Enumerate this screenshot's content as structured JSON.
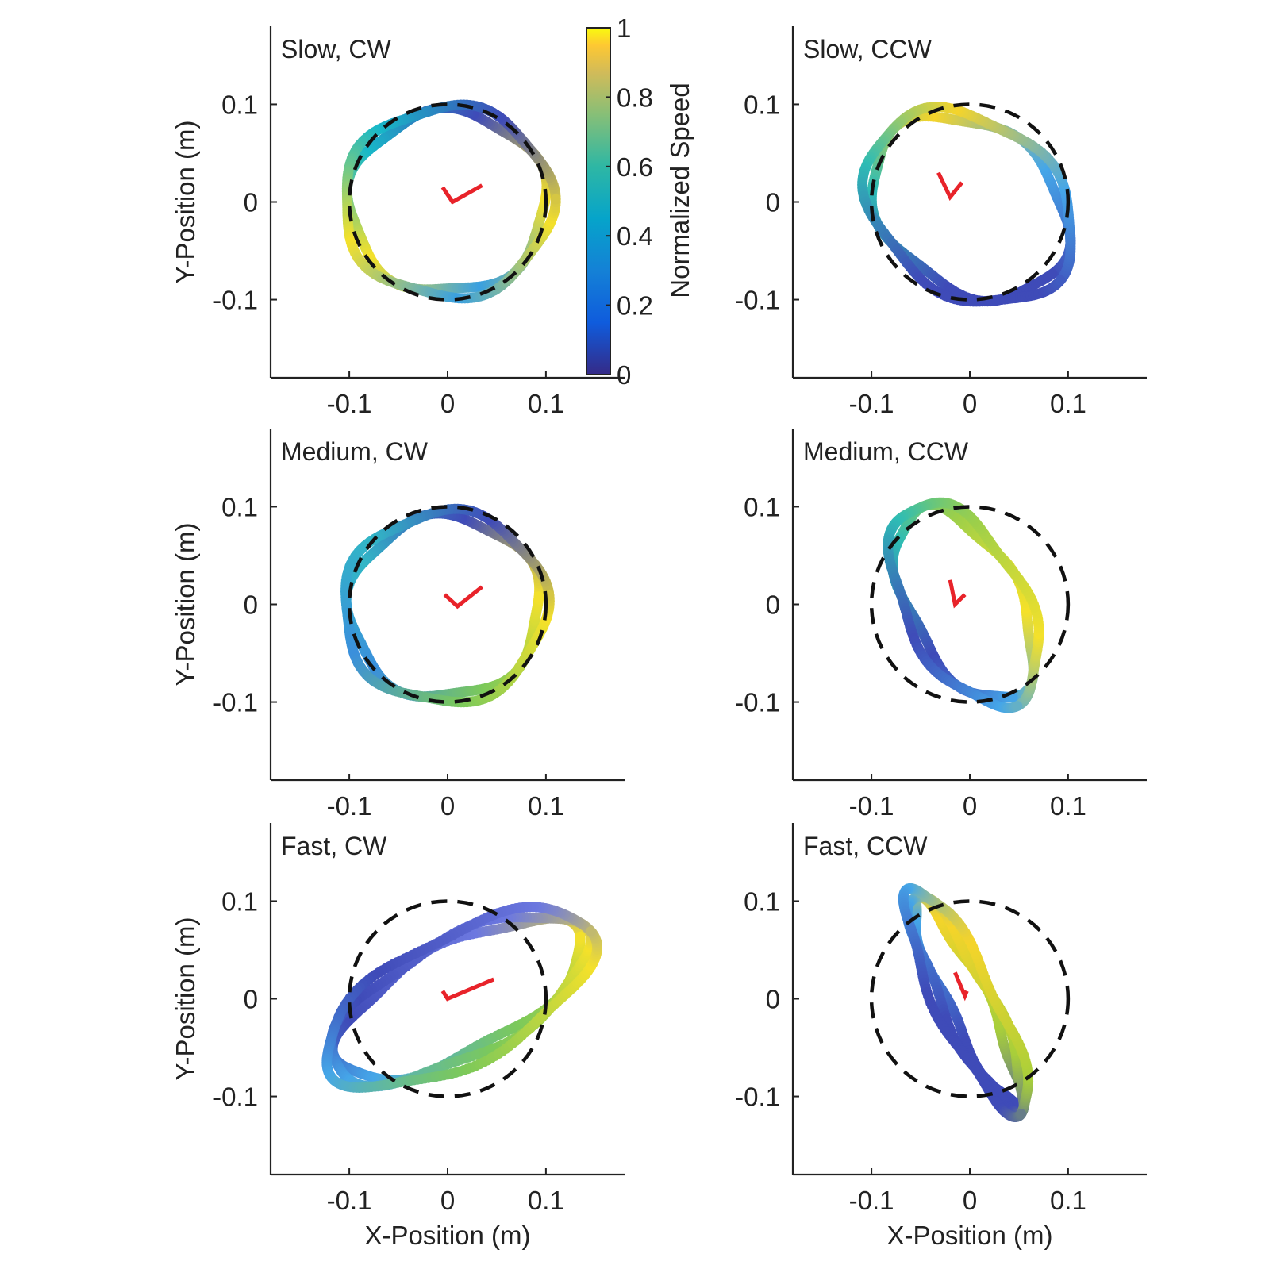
{
  "figure": {
    "xlabel": "X-Position (m)",
    "ylabel": "Y-Position (m)",
    "colorbar": {
      "label": "Normalized Speed",
      "ticks": [
        "0",
        "0.2",
        "0.4",
        "0.6",
        "0.8",
        "1"
      ],
      "colormap": "parula"
    },
    "x_ticks": [
      "-0.1",
      "0",
      "0.1"
    ],
    "y_ticks": [
      "0.1",
      "0",
      "-0.1"
    ]
  },
  "chart_data": [
    {
      "type": "scatter",
      "title": "Slow, CW",
      "xlim": [
        -0.18,
        0.18
      ],
      "ylim": [
        -0.18,
        0.18
      ],
      "target_circle": {
        "center": [
          0,
          0
        ],
        "radius": 0.1,
        "style": "dashed"
      },
      "trajectory": {
        "cx": 0.0,
        "cy": 0.0,
        "a": 0.103,
        "b": 0.095,
        "angle_deg": 3,
        "loops": 2
      },
      "arm_marker": {
        "points": [
          [
            -0.005,
            0.015
          ],
          [
            0.005,
            0.0
          ],
          [
            0.035,
            0.017
          ]
        ],
        "color": "#e8232a"
      },
      "speed_colors": [
        "#f5e12a",
        "#3f4bb8",
        "#18b8c8",
        "#f5e12a",
        "#3aa0e0"
      ]
    },
    {
      "type": "scatter",
      "title": "Slow, CCW",
      "xlim": [
        -0.18,
        0.18
      ],
      "ylim": [
        -0.18,
        0.18
      ],
      "target_circle": {
        "center": [
          0,
          0
        ],
        "radius": 0.1,
        "style": "dashed"
      },
      "trajectory": {
        "cx": 0.0,
        "cy": -0.005,
        "a": 0.112,
        "b": 0.085,
        "angle_deg": -38,
        "loops": 2
      },
      "arm_marker": {
        "points": [
          [
            -0.032,
            0.03
          ],
          [
            -0.02,
            0.005
          ],
          [
            -0.008,
            0.02
          ]
        ],
        "color": "#e8232a"
      },
      "speed_colors": [
        "#3f4bb8",
        "#45a6e8",
        "#f5d42a",
        "#2ebcb5",
        "#3f4bb8"
      ]
    },
    {
      "type": "scatter",
      "title": "Medium, CW",
      "xlim": [
        -0.18,
        0.18
      ],
      "ylim": [
        -0.18,
        0.18
      ],
      "target_circle": {
        "center": [
          0,
          0
        ],
        "radius": 0.1,
        "style": "dashed"
      },
      "trajectory": {
        "cx": -0.003,
        "cy": -0.003,
        "a": 0.1,
        "b": 0.095,
        "angle_deg": 8,
        "loops": 2
      },
      "arm_marker": {
        "points": [
          [
            -0.003,
            0.01
          ],
          [
            0.01,
            -0.002
          ],
          [
            0.035,
            0.018
          ]
        ],
        "color": "#e8232a"
      },
      "speed_colors": [
        "#f5e12a",
        "#3f4bb8",
        "#32b6c6",
        "#3a8fdc",
        "#7cc95a"
      ]
    },
    {
      "type": "scatter",
      "title": "Medium, CCW",
      "xlim": [
        -0.18,
        0.18
      ],
      "ylim": [
        -0.18,
        0.18
      ],
      "target_circle": {
        "center": [
          0,
          0
        ],
        "radius": 0.1,
        "style": "dashed"
      },
      "trajectory": {
        "cx": -0.005,
        "cy": 0.0,
        "a": 0.11,
        "b": 0.058,
        "angle_deg": -62,
        "loops": 2
      },
      "arm_marker": {
        "points": [
          [
            -0.02,
            0.025
          ],
          [
            -0.015,
            0.0
          ],
          [
            -0.005,
            0.01
          ]
        ],
        "color": "#e8232a"
      },
      "speed_colors": [
        "#45a6e8",
        "#f5e12a",
        "#9ccf4a",
        "#2ebcb5",
        "#3f4bb8"
      ]
    },
    {
      "type": "scatter",
      "title": "Fast,  CW",
      "xlim": [
        -0.18,
        0.18
      ],
      "ylim": [
        -0.18,
        0.18
      ],
      "target_circle": {
        "center": [
          0,
          0
        ],
        "radius": 0.1,
        "style": "dashed"
      },
      "trajectory": {
        "cx": 0.012,
        "cy": 0.0,
        "a": 0.145,
        "b": 0.06,
        "angle_deg": 28,
        "loops": 3
      },
      "arm_marker": {
        "points": [
          [
            -0.005,
            0.008
          ],
          [
            0.0,
            0.0
          ],
          [
            0.047,
            0.02
          ]
        ],
        "color": "#e8232a"
      },
      "speed_colors": [
        "#f5e12a",
        "#6c78e0",
        "#3f4bb8",
        "#45a6e8",
        "#7cc95a"
      ]
    },
    {
      "type": "scatter",
      "title": "Fast,  CCW",
      "xlim": [
        -0.18,
        0.18
      ],
      "ylim": [
        -0.18,
        0.18
      ],
      "target_circle": {
        "center": [
          0,
          0
        ],
        "radius": 0.1,
        "style": "dashed"
      },
      "trajectory": {
        "cx": -0.003,
        "cy": -0.003,
        "a": 0.122,
        "b": 0.025,
        "angle_deg": -64,
        "loops": 3
      },
      "arm_marker": {
        "points": [
          [
            -0.015,
            0.027
          ],
          [
            -0.005,
            0.003
          ],
          [
            -0.003,
            0.008
          ]
        ],
        "color": "#e8232a"
      },
      "speed_colors": [
        "#3f4bb8",
        "#a8cf3a",
        "#f5d42a",
        "#45a6e8",
        "#3f4bb8"
      ]
    }
  ]
}
